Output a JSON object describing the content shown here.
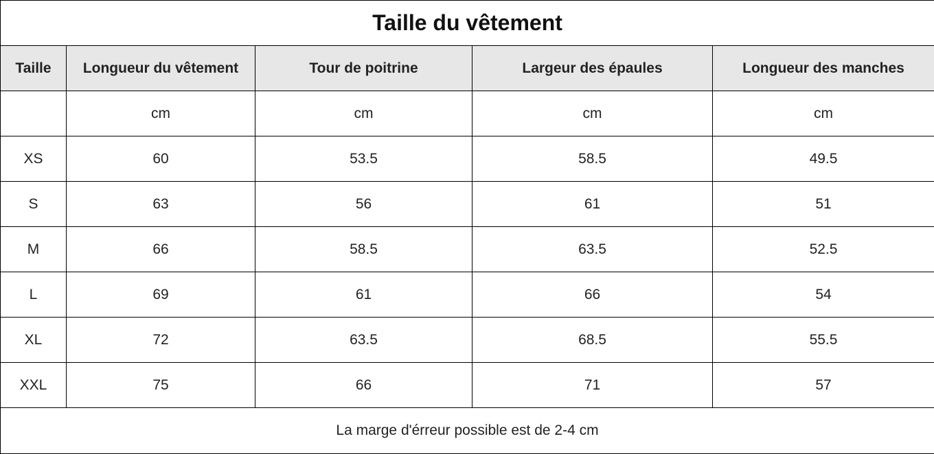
{
  "title": "Taille du vêtement",
  "headers": [
    "Taille",
    "Longueur du vêtement",
    "Tour de poitrine",
    "Largeur des épaules",
    "Longueur des manches"
  ],
  "rows": [
    [
      "",
      "cm",
      "cm",
      "cm",
      "cm"
    ],
    [
      "XS",
      "60",
      "53.5",
      "58.5",
      "49.5"
    ],
    [
      "S",
      "63",
      "56",
      "61",
      "51"
    ],
    [
      "M",
      "66",
      "58.5",
      "63.5",
      "52.5"
    ],
    [
      "L",
      "69",
      "61",
      "66",
      "54"
    ],
    [
      "XL",
      "72",
      "63.5",
      "68.5",
      "55.5"
    ],
    [
      "XXL",
      "75",
      "66",
      "71",
      "57"
    ]
  ],
  "footer": "La marge d'érreur possible est de 2-4 cm",
  "colors": {
    "header_background": "#e7e7e7",
    "border": "#000000"
  }
}
